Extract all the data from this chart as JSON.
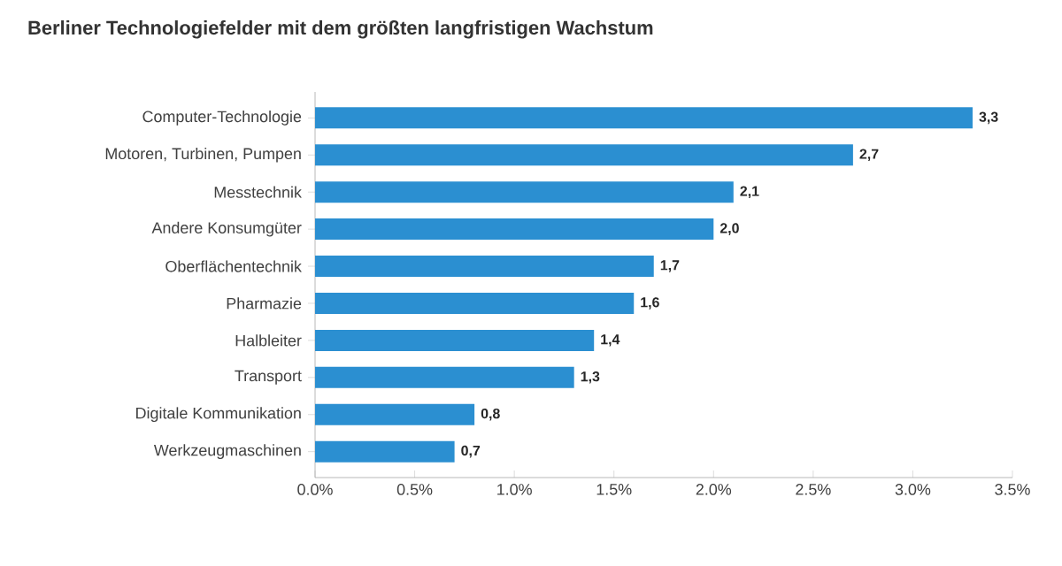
{
  "chart_data": {
    "type": "bar",
    "orientation": "horizontal",
    "title": "Berliner Technologiefelder mit dem größten langfristigen Wachstum",
    "categories": [
      "Computer-Technologie",
      "Motoren, Turbinen, Pumpen",
      "Messtechnik",
      "Andere Konsumgüter",
      "Oberflächentechnik",
      "Pharmazie",
      "Halbleiter",
      "Transport",
      "Digitale Kommunikation",
      "Werkzeugmaschinen"
    ],
    "values": [
      3.3,
      2.7,
      2.1,
      2.0,
      1.7,
      1.6,
      1.4,
      1.3,
      0.8,
      0.7
    ],
    "value_labels": [
      "3,3",
      "2,7",
      "2,1",
      "2,0",
      "1,7",
      "1,6",
      "1,4",
      "1,3",
      "0,8",
      "0,7"
    ],
    "color": "#2b8fd1",
    "xlim": [
      0,
      3.5
    ],
    "xticks": [
      {
        "value": 0,
        "label": "0.0%"
      },
      {
        "value": 0.5,
        "label": "0.5%"
      },
      {
        "value": 1,
        "label": "1.0%"
      },
      {
        "value": 1.5,
        "label": "1.5%"
      },
      {
        "value": 2,
        "label": "2.0%"
      },
      {
        "value": 2.5,
        "label": "2.5%"
      },
      {
        "value": 3,
        "label": "3.0%"
      },
      {
        "value": 3.5,
        "label": "3.5%"
      }
    ],
    "grid": false
  }
}
